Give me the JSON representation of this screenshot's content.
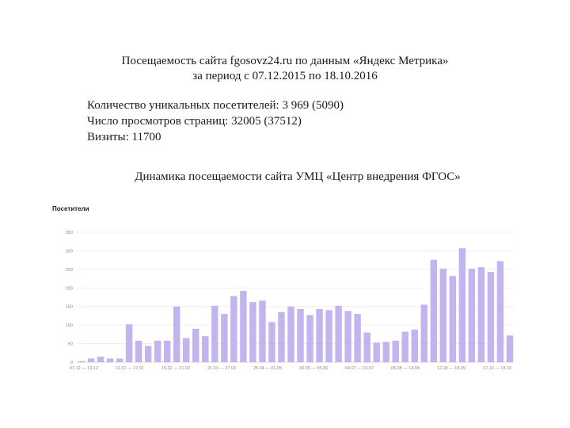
{
  "header": {
    "title_line1": "Посещаемость сайта fgosovz24.ru по данным «Яндекс Метрика»",
    "title_line2": "за период с 07.12.2015 по 18.10.2016"
  },
  "stats": {
    "unique": "Количество уникальных посетителей: 3 969 (5090)",
    "views": "Число просмотров страниц: 32005 (37512)",
    "visits": "Визиты: 11700"
  },
  "section_title": "Динамика посещаемости сайта УМЦ «Центр внедрения ФГОС»",
  "chart_data": {
    "type": "bar",
    "title": "Посетители",
    "xlabel": "",
    "ylabel": "",
    "ylim": [
      0,
      350
    ],
    "y_ticks": [
      "0",
      "50",
      "100",
      "150",
      "200",
      "250",
      "300",
      "350"
    ],
    "x_tick_labels": [
      "07.12 — 13.12",
      "11.01 — 17.01",
      "15.02 — 21.02",
      "21.03 — 27.03",
      "25.04 — 01.05",
      "30.05 — 05.06",
      "04.07 — 10.07",
      "08.08 — 14.08",
      "12.09 — 18.09",
      "17.10 — 18.10"
    ],
    "grid": true,
    "bar_color": "#c3b4f0",
    "values": [
      3,
      10,
      15,
      10,
      10,
      102,
      58,
      44,
      58,
      58,
      150,
      65,
      90,
      70,
      152,
      130,
      178,
      192,
      162,
      166,
      108,
      135,
      150,
      143,
      127,
      143,
      140,
      152,
      138,
      130,
      80,
      53,
      55,
      58,
      82,
      88,
      155,
      276,
      252,
      232,
      307,
      252,
      256,
      243,
      272,
      72
    ]
  }
}
